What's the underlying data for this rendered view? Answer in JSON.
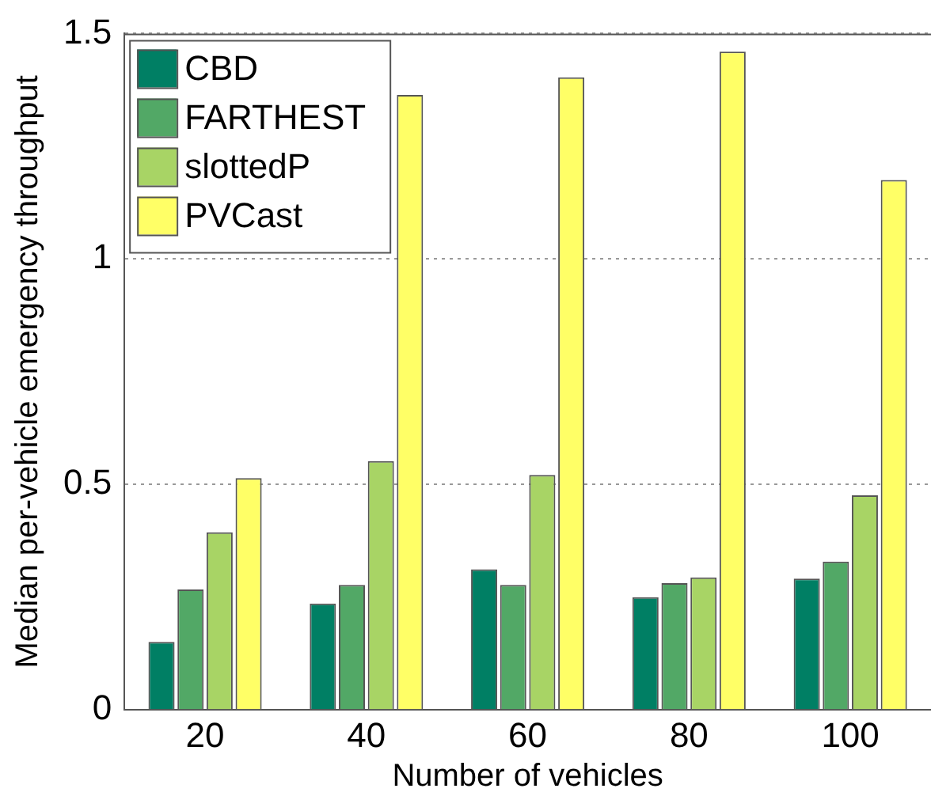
{
  "chart_data": {
    "type": "bar",
    "xlabel": "Number of vehicles",
    "ylabel": "Median per-vehicle emergency throughput",
    "categories": [
      "20",
      "40",
      "60",
      "80",
      "100"
    ],
    "series": [
      {
        "name": "CBD",
        "color": "#007f64",
        "values": [
          0.151,
          0.236,
          0.312,
          0.25,
          0.291
        ]
      },
      {
        "name": "FARTHEST",
        "color": "#52a866",
        "values": [
          0.267,
          0.277,
          0.277,
          0.281,
          0.329
        ]
      },
      {
        "name": "slottedP",
        "color": "#a8d465",
        "values": [
          0.394,
          0.552,
          0.521,
          0.294,
          0.476
        ]
      },
      {
        "name": "PVCast",
        "color": "#ffff66",
        "values": [
          0.514,
          1.364,
          1.403,
          1.46,
          1.175
        ]
      }
    ],
    "ylim": [
      0,
      1.5
    ],
    "yticks": [
      0,
      0.5,
      1,
      1.5
    ],
    "grid": "y",
    "legend": "top left"
  }
}
